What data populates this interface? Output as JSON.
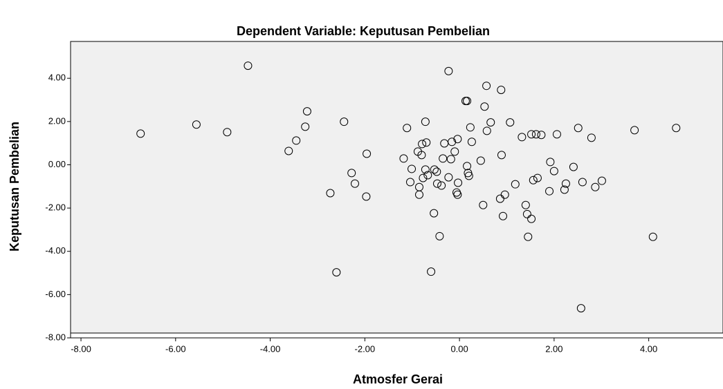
{
  "chart_data": {
    "type": "scatter",
    "title": "Dependent Variable: Keputusan Pembelian",
    "x_label": "Atmosfer Gerai",
    "y_label": "Keputusan Pembelian",
    "color": "#000000",
    "background": "#f0f0f0",
    "xlim": [
      -8.22,
      5.57
    ],
    "ylim": [
      -8.0,
      5.7
    ],
    "xticks": [
      {
        "value": -8,
        "label": "-8.00"
      },
      {
        "value": -6,
        "label": "-6.00"
      },
      {
        "value": -4,
        "label": "-4.00"
      },
      {
        "value": -2,
        "label": "-2.00"
      },
      {
        "value": 0,
        "label": "0.00"
      },
      {
        "value": 2,
        "label": "2.00"
      },
      {
        "value": 4,
        "label": "4.00"
      }
    ],
    "yticks": [
      {
        "value": -8,
        "label": "-8.00"
      },
      {
        "value": -6,
        "label": "-6.00"
      },
      {
        "value": -4,
        "label": "-4.00"
      },
      {
        "value": -2,
        "label": "-2.00"
      },
      {
        "value": 0,
        "label": "0.00"
      },
      {
        "value": 2,
        "label": "2.00"
      },
      {
        "value": 4,
        "label": "4.00"
      }
    ],
    "x": [
      -6.74,
      -5.56,
      -4.91,
      -4.47,
      -3.61,
      -3.45,
      -3.26,
      -3.22,
      -2.73,
      -2.6,
      -2.44,
      -2.28,
      -2.21,
      -1.97,
      -1.96,
      -1.18,
      -1.11,
      -1.04,
      -1.01,
      -0.88,
      -0.85,
      -0.85,
      -0.8,
      -0.79,
      -0.77,
      -0.72,
      -0.7,
      -0.72,
      -0.67,
      -0.6,
      -0.54,
      -0.53,
      -0.48,
      -0.47,
      -0.42,
      -0.38,
      -0.35,
      -0.32,
      -0.23,
      -0.23,
      -0.18,
      -0.16,
      -0.1,
      -0.06,
      -0.04,
      -0.03,
      -0.04,
      0.13,
      0.16,
      0.16,
      0.18,
      0.2,
      0.23,
      0.26,
      0.45,
      0.5,
      0.53,
      0.57,
      0.58,
      0.66,
      0.88,
      0.86,
      0.89,
      0.92,
      0.96,
      1.07,
      1.18,
      1.32,
      1.4,
      1.43,
      1.45,
      1.52,
      1.52,
      1.56,
      1.62,
      1.65,
      1.73,
      1.9,
      1.92,
      2.0,
      2.06,
      2.22,
      2.25,
      2.41,
      2.51,
      2.57,
      2.6,
      2.79,
      2.87,
      3.01,
      3.7,
      4.09,
      4.58
    ],
    "values": [
      1.44,
      1.86,
      1.51,
      4.58,
      0.64,
      1.12,
      1.76,
      2.47,
      -1.31,
      -4.97,
      1.99,
      -0.38,
      -0.87,
      -1.47,
      0.51,
      0.29,
      1.7,
      -0.8,
      -0.19,
      0.61,
      -1.38,
      -1.03,
      0.45,
      0.96,
      -0.61,
      1.99,
      1.03,
      -0.22,
      -0.48,
      -4.94,
      -2.24,
      -0.22,
      -0.32,
      -0.87,
      -3.3,
      -0.96,
      0.29,
      0.99,
      -0.58,
      4.33,
      0.26,
      1.06,
      0.61,
      -1.28,
      -1.38,
      -0.83,
      1.19,
      2.95,
      2.95,
      -0.06,
      -0.38,
      -0.51,
      1.73,
      1.06,
      0.19,
      -1.86,
      2.69,
      3.65,
      1.57,
      1.96,
      3.46,
      -1.57,
      0.45,
      -2.37,
      -1.38,
      1.96,
      -0.9,
      1.28,
      -1.86,
      -2.28,
      -3.33,
      -2.5,
      1.41,
      -0.71,
      1.41,
      -0.61,
      1.38,
      -1.22,
      0.13,
      -0.29,
      1.41,
      -1.15,
      -0.87,
      -0.1,
      1.7,
      -6.63,
      -0.8,
      1.25,
      -1.03,
      -0.74,
      1.6,
      -3.33,
      1.7
    ]
  }
}
